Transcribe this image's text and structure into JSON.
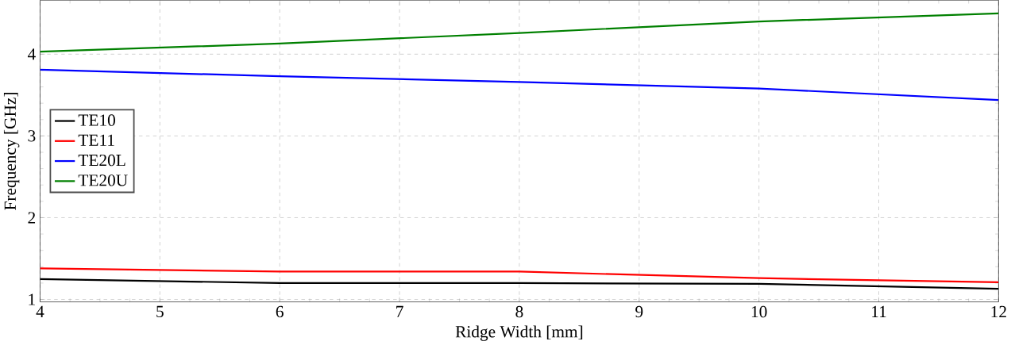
{
  "chart_data": {
    "type": "line",
    "xlabel": "Ridge Width [mm]",
    "ylabel": "Frequency [GHz]",
    "x": [
      4,
      6,
      8,
      10,
      12
    ],
    "series": [
      {
        "name": "TE10",
        "color": "#000000",
        "values": [
          1.25,
          1.2,
          1.2,
          1.19,
          1.13
        ]
      },
      {
        "name": "TE11",
        "color": "#ff0000",
        "values": [
          1.38,
          1.34,
          1.34,
          1.26,
          1.21
        ]
      },
      {
        "name": "TE20L",
        "color": "#0000ff",
        "values": [
          3.81,
          3.73,
          3.66,
          3.58,
          3.44
        ]
      },
      {
        "name": "TE20U",
        "color": "#008000",
        "values": [
          4.03,
          4.13,
          4.26,
          4.4,
          4.5
        ]
      }
    ],
    "xlim": [
      4,
      12
    ],
    "ylim": [
      0.97,
      4.66
    ],
    "xticks": [
      4,
      5,
      6,
      7,
      8,
      9,
      10,
      11,
      12
    ],
    "yticks": [
      1,
      2,
      3,
      4
    ],
    "grid": true,
    "legend": "left",
    "marker": "none",
    "line_style": "solid"
  }
}
